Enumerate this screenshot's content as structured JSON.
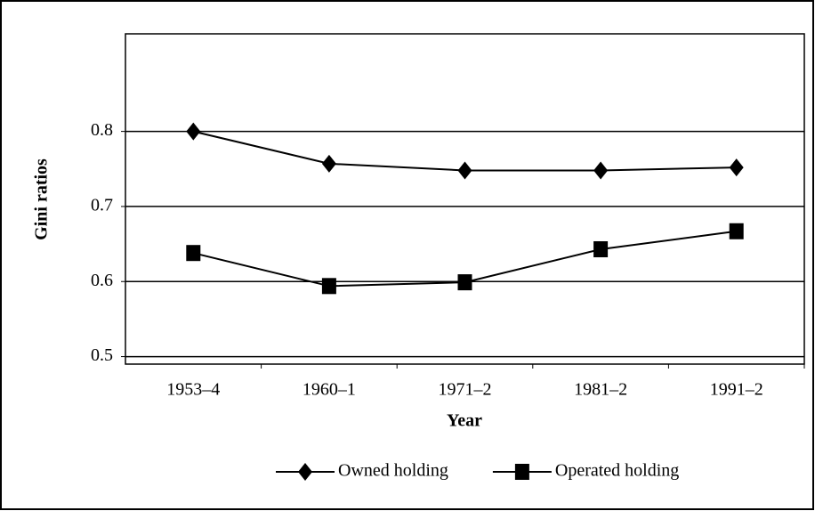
{
  "chart_data": {
    "type": "line",
    "x_label": "Year",
    "y_label": "Gini ratios",
    "categories": [
      "1953–4",
      "1960–1",
      "1971–2",
      "1981–2",
      "1991–2"
    ],
    "series": [
      {
        "name": "Owned holding",
        "color": "#000000",
        "marker": "diamond",
        "values": [
          0.8,
          0.757,
          0.748,
          0.748,
          0.752
        ]
      },
      {
        "name": "Operated holding",
        "color": "#000000",
        "marker": "square",
        "values": [
          0.638,
          0.594,
          0.599,
          0.643,
          0.667
        ]
      }
    ],
    "ylim": [
      0.49,
      0.93
    ],
    "yticks": [
      0.5,
      0.6,
      0.7,
      0.8
    ],
    "grid": true,
    "legend": "bottom"
  }
}
